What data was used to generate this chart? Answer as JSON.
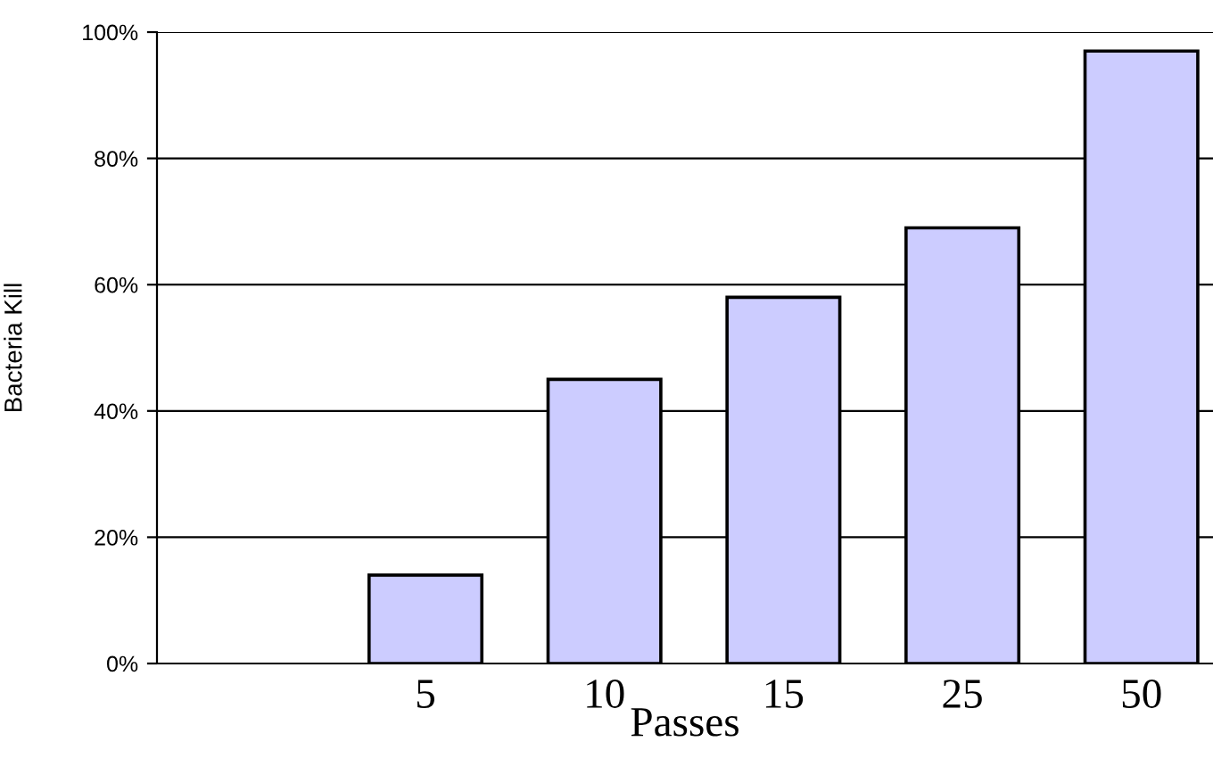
{
  "chart_data": {
    "type": "bar",
    "xlabel": "Passes",
    "ylabel": "Bacteria Kill",
    "categories": [
      null,
      "5",
      "10",
      "15",
      "25",
      "50"
    ],
    "values": [
      null,
      14,
      45,
      58,
      69,
      97
    ],
    "color": "#ccccff",
    "ylim": [
      0,
      100
    ],
    "yticks": [
      {
        "value": 0,
        "label": "0%"
      },
      {
        "value": 20,
        "label": "20%"
      },
      {
        "value": 40,
        "label": "40%"
      },
      {
        "value": 60,
        "label": "60%"
      },
      {
        "value": 80,
        "label": "80%"
      },
      {
        "value": 100,
        "label": "100%"
      }
    ],
    "grid": "y",
    "legend": false
  }
}
